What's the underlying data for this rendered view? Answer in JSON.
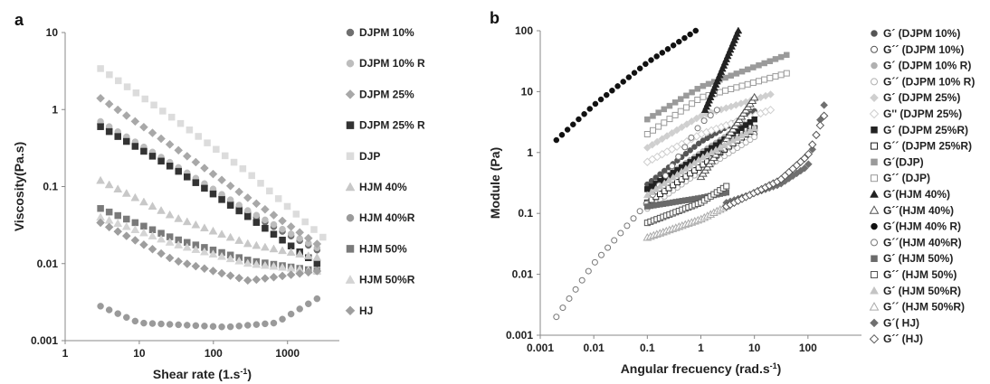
{
  "chart_data": [
    {
      "type": "scatter",
      "panel_label": "a",
      "xlabel": "Shear rate (1.s",
      "xlabel_sup": "-1",
      "xlabel_close": ")",
      "ylabel": "Viscosity(Pa.s)",
      "xscale": "log",
      "yscale": "log",
      "xlim": [
        1,
        5000
      ],
      "ylim": [
        0.001,
        10
      ],
      "x_ticks": [
        {
          "v": 1,
          "t": "1"
        },
        {
          "v": 10,
          "t": "10"
        },
        {
          "v": 100,
          "t": "100"
        },
        {
          "v": 1000,
          "t": "1000"
        }
      ],
      "y_ticks": [
        {
          "v": 0.001,
          "t": "0.001"
        },
        {
          "v": 0.01,
          "t": "0.01"
        },
        {
          "v": 0.1,
          "t": "0.1"
        },
        {
          "v": 1,
          "t": "1"
        },
        {
          "v": 10,
          "t": "10"
        }
      ],
      "grid": false,
      "legend_position": "right",
      "series": [
        {
          "name": "DJPM 10%",
          "marker": "circle",
          "color": "#6f6f6f",
          "fill": true,
          "xrange": [
            3,
            2500
          ],
          "profile": [
            [
              3,
              0.65
            ],
            [
              30,
              0.18
            ],
            [
              300,
              0.045
            ],
            [
              2500,
              0.015
            ]
          ]
        },
        {
          "name": "DJPM 10% R",
          "marker": "circle",
          "color": "#bdbdbd",
          "fill": true,
          "xrange": [
            3,
            2500
          ],
          "profile": [
            [
              3,
              0.7
            ],
            [
              30,
              0.19
            ],
            [
              300,
              0.048
            ],
            [
              2500,
              0.016
            ]
          ]
        },
        {
          "name": "DJPM 25%",
          "marker": "diamond",
          "color": "#a8a8a8",
          "fill": true,
          "xrange": [
            3,
            2500
          ],
          "profile": [
            [
              3,
              1.4
            ],
            [
              30,
              0.32
            ],
            [
              300,
              0.07
            ],
            [
              2500,
              0.018
            ]
          ]
        },
        {
          "name": "DJPM 25% R",
          "marker": "square",
          "color": "#333333",
          "fill": true,
          "xrange": [
            3,
            2500
          ],
          "profile": [
            [
              3,
              0.6
            ],
            [
              30,
              0.17
            ],
            [
              300,
              0.04
            ],
            [
              2500,
              0.01
            ]
          ]
        },
        {
          "name": "DJP",
          "marker": "square",
          "color": "#dcdcdc",
          "fill": true,
          "xrange": [
            3,
            3000
          ],
          "profile": [
            [
              3,
              3.4
            ],
            [
              30,
              0.75
            ],
            [
              300,
              0.15
            ],
            [
              3000,
              0.022
            ]
          ]
        },
        {
          "name": "HJM 40%",
          "marker": "triangle",
          "color": "#c8c8c8",
          "fill": true,
          "xrange": [
            3,
            2500
          ],
          "profile": [
            [
              3,
              0.12
            ],
            [
              30,
              0.04
            ],
            [
              300,
              0.018
            ],
            [
              2500,
              0.012
            ]
          ]
        },
        {
          "name": "HJM 40%R",
          "marker": "circle",
          "color": "#9a9a9a",
          "fill": true,
          "xrange": [
            3,
            2500
          ],
          "profile": [
            [
              3,
              0.0028
            ],
            [
              10,
              0.0017
            ],
            [
              150,
              0.0015
            ],
            [
              700,
              0.0017
            ],
            [
              2500,
              0.0035
            ]
          ]
        },
        {
          "name": "HJM 50%",
          "marker": "square",
          "color": "#7a7a7a",
          "fill": true,
          "xrange": [
            3,
            2500
          ],
          "profile": [
            [
              3,
              0.052
            ],
            [
              30,
              0.021
            ],
            [
              300,
              0.011
            ],
            [
              2500,
              0.008
            ]
          ]
        },
        {
          "name": "HJM 50%R",
          "marker": "triangle",
          "color": "#d4d4d4",
          "fill": true,
          "xrange": [
            3,
            2500
          ],
          "profile": [
            [
              3,
              0.04
            ],
            [
              30,
              0.018
            ],
            [
              300,
              0.01
            ],
            [
              2500,
              0.008
            ]
          ]
        },
        {
          "name": "HJ",
          "marker": "diamond",
          "color": "#9e9e9e",
          "fill": true,
          "xrange": [
            3,
            2500
          ],
          "profile": [
            [
              3,
              0.034
            ],
            [
              30,
              0.011
            ],
            [
              300,
              0.006
            ],
            [
              2500,
              0.008
            ]
          ]
        }
      ]
    },
    {
      "type": "scatter",
      "panel_label": "b",
      "xlabel": "Angular frecuency (rad.s",
      "xlabel_sup": "-1",
      "xlabel_close": ")",
      "ylabel": "Module (Pa)",
      "xscale": "log",
      "yscale": "log",
      "xlim": [
        0.001,
        1000
      ],
      "ylim": [
        0.001,
        100
      ],
      "x_ticks": [
        {
          "v": 0.001,
          "t": "0.001"
        },
        {
          "v": 0.01,
          "t": "0.01"
        },
        {
          "v": 0.1,
          "t": "0.1"
        },
        {
          "v": 1,
          "t": "1"
        },
        {
          "v": 10,
          "t": "10"
        },
        {
          "v": 100,
          "t": "100"
        }
      ],
      "y_ticks": [
        {
          "v": 0.001,
          "t": "0.001"
        },
        {
          "v": 0.01,
          "t": "0.01"
        },
        {
          "v": 0.1,
          "t": "0.1"
        },
        {
          "v": 1,
          "t": "1"
        },
        {
          "v": 10,
          "t": "10"
        },
        {
          "v": 100,
          "t": "100"
        }
      ],
      "grid": false,
      "legend_position": "right",
      "series": [
        {
          "name": "G´ (DJPM 10%)",
          "marker": "circle",
          "color": "#555555",
          "fill": true,
          "xrange": [
            0.1,
            10
          ],
          "profile": [
            [
              0.1,
              0.3
            ],
            [
              1,
              1.5
            ],
            [
              10,
              4.8
            ]
          ]
        },
        {
          "name": "G´´ (DJPM 10%)",
          "marker": "circle",
          "color": "#555555",
          "fill": false,
          "xrange": [
            0.1,
            10
          ],
          "profile": [
            [
              0.1,
              0.15
            ],
            [
              1,
              0.6
            ],
            [
              10,
              2.0
            ]
          ]
        },
        {
          "name": "G´ (DJPM 10% R)",
          "marker": "circle",
          "color": "#b0b0b0",
          "fill": true,
          "xrange": [
            0.1,
            10
          ],
          "profile": [
            [
              0.1,
              0.25
            ],
            [
              1,
              1.0
            ],
            [
              10,
              3.8
            ]
          ]
        },
        {
          "name": "G´´ (DJPM 10% R)",
          "marker": "circle",
          "color": "#b0b0b0",
          "fill": false,
          "xrange": [
            0.1,
            10
          ],
          "profile": [
            [
              0.1,
              0.12
            ],
            [
              1,
              0.5
            ],
            [
              10,
              1.8
            ]
          ]
        },
        {
          "name": "G´ (DJPM 25%)",
          "marker": "diamond",
          "color": "#cfcfcf",
          "fill": true,
          "xrange": [
            0.1,
            20
          ],
          "profile": [
            [
              0.1,
              1.2
            ],
            [
              1,
              4.0
            ],
            [
              20,
              9.0
            ]
          ]
        },
        {
          "name": "G'' (DJPM 25%)",
          "marker": "diamond",
          "color": "#cfcfcf",
          "fill": false,
          "xrange": [
            0.1,
            20
          ],
          "profile": [
            [
              0.1,
              0.7
            ],
            [
              1,
              2.0
            ],
            [
              20,
              5.0
            ]
          ]
        },
        {
          "name": "G´ (DJPM 25%R)",
          "marker": "square",
          "color": "#222222",
          "fill": true,
          "xrange": [
            0.1,
            10
          ],
          "profile": [
            [
              0.1,
              0.25
            ],
            [
              1,
              0.9
            ],
            [
              10,
              3.5
            ]
          ]
        },
        {
          "name": "G´´ (DJPM 25%R)",
          "marker": "square",
          "color": "#222222",
          "fill": false,
          "xrange": [
            0.1,
            10
          ],
          "profile": [
            [
              0.1,
              0.15
            ],
            [
              1,
              0.6
            ],
            [
              10,
              2.5
            ]
          ]
        },
        {
          "name": "G´(DJP)",
          "marker": "square",
          "color": "#9a9a9a",
          "fill": true,
          "xrange": [
            0.1,
            40
          ],
          "profile": [
            [
              0.1,
              3.5
            ],
            [
              1,
              12
            ],
            [
              40,
              40
            ]
          ]
        },
        {
          "name": "G´´ (DJP)",
          "marker": "square",
          "color": "#9a9a9a",
          "fill": false,
          "xrange": [
            0.1,
            40
          ],
          "profile": [
            [
              0.1,
              2.0
            ],
            [
              1,
              8
            ],
            [
              40,
              20
            ]
          ]
        },
        {
          "name": "G´(HJM 40%)",
          "marker": "triangle",
          "color": "#222222",
          "fill": true,
          "xrange": [
            1.2,
            5
          ],
          "profile": [
            [
              1.2,
              5
            ],
            [
              5,
              100
            ]
          ]
        },
        {
          "name": "G´´(HJM 40%)",
          "marker": "triangle",
          "color": "#555555",
          "fill": false,
          "xrange": [
            1,
            10
          ],
          "profile": [
            [
              1,
              0.4
            ],
            [
              10,
              8
            ]
          ]
        },
        {
          "name": "G´(HJM 40% R)",
          "marker": "circle",
          "color": "#111111",
          "fill": true,
          "xrange": [
            0.002,
            0.8
          ],
          "profile": [
            [
              0.002,
              1.6
            ],
            [
              0.01,
              6
            ],
            [
              0.1,
              30
            ],
            [
              0.8,
              100
            ]
          ]
        },
        {
          "name": "G´´(HJM 40%R)",
          "marker": "circle",
          "color": "#777777",
          "fill": false,
          "xrange": [
            0.002,
            2
          ],
          "profile": [
            [
              0.002,
              0.002
            ],
            [
              0.01,
              0.015
            ],
            [
              0.1,
              0.15
            ],
            [
              1,
              3
            ],
            [
              2,
              5
            ]
          ]
        },
        {
          "name": "G´ (HJM 50%)",
          "marker": "square",
          "color": "#6a6a6a",
          "fill": true,
          "xrange": [
            0.1,
            3
          ],
          "profile": [
            [
              0.1,
              0.13
            ],
            [
              1,
              0.18
            ],
            [
              3,
              0.22
            ]
          ]
        },
        {
          "name": "G´´ (HJM 50%)",
          "marker": "square",
          "color": "#555555",
          "fill": false,
          "xrange": [
            0.1,
            3
          ],
          "profile": [
            [
              0.1,
              0.07
            ],
            [
              1,
              0.15
            ],
            [
              3,
              0.28
            ]
          ]
        },
        {
          "name": "G´ (HJM 50%R)",
          "marker": "triangle",
          "color": "#c4c4c4",
          "fill": true,
          "xrange": [
            0.1,
            10
          ],
          "profile": [
            [
              0.1,
              0.2
            ],
            [
              1,
              0.8
            ],
            [
              10,
              2.5
            ]
          ]
        },
        {
          "name": "G´´ (HJM 50%R)",
          "marker": "triangle",
          "color": "#aaaaaa",
          "fill": false,
          "xrange": [
            0.1,
            3
          ],
          "profile": [
            [
              0.1,
              0.04
            ],
            [
              1,
              0.08
            ],
            [
              3,
              0.13
            ]
          ]
        },
        {
          "name": "G´( HJ)",
          "marker": "diamond",
          "color": "#6f6f6f",
          "fill": true,
          "xrange": [
            3,
            200
          ],
          "profile": [
            [
              3,
              0.15
            ],
            [
              30,
              0.3
            ],
            [
              100,
              0.6
            ],
            [
              200,
              6
            ]
          ]
        },
        {
          "name": "G´´ (HJ)",
          "marker": "diamond",
          "color": "#555555",
          "fill": false,
          "xrange": [
            3,
            200
          ],
          "profile": [
            [
              3,
              0.13
            ],
            [
              30,
              0.35
            ],
            [
              100,
              0.9
            ],
            [
              200,
              4
            ]
          ]
        }
      ]
    }
  ]
}
